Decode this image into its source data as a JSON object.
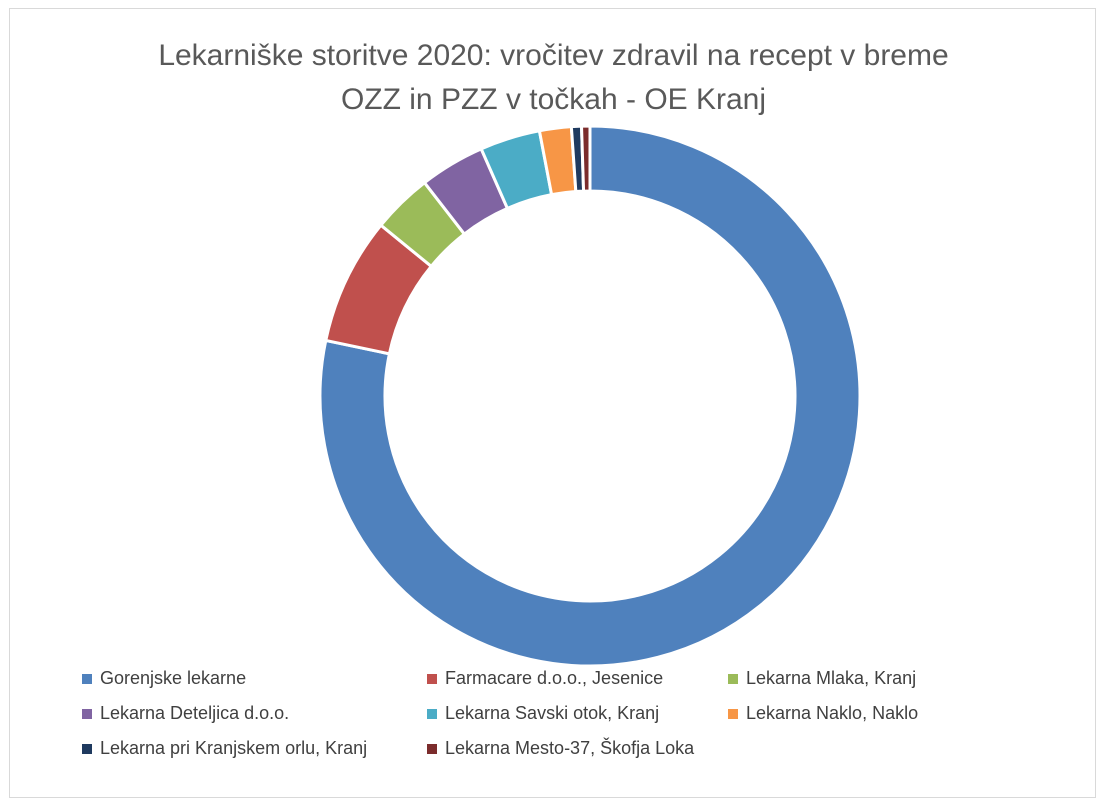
{
  "chart_data": {
    "type": "doughnut",
    "title_lines": [
      "Lekarniške storitve 2020: vročitev zdravil na recept v breme",
      "OZZ in PZZ v točkah - OE Kranj"
    ],
    "series": [
      {
        "name": "Gorenjske lekarne",
        "value": 78.3,
        "color": "#4F81BD"
      },
      {
        "name": "Farmacare d.o.o., Jesenice",
        "value": 7.6,
        "color": "#C0504D"
      },
      {
        "name": "Lekarna Mlaka, Kranj",
        "value": 3.6,
        "color": "#9BBB59"
      },
      {
        "name": "Lekarna Deteljica d.o.o.",
        "value": 3.9,
        "color": "#8064A2"
      },
      {
        "name": "Lekarna Savski otok, Kranj",
        "value": 3.6,
        "color": "#4BACC6"
      },
      {
        "name": "Lekarna Naklo, Naklo",
        "value": 1.9,
        "color": "#F79646"
      },
      {
        "name": "Lekarna pri Kranjskem orlu, Kranj",
        "value": 0.6,
        "color": "#1F3A5F"
      },
      {
        "name": "Lekarna Mesto-37, Škofja Loka",
        "value": 0.5,
        "color": "#7B2C2C"
      }
    ],
    "legend_position": "bottom",
    "data_labels": false
  }
}
